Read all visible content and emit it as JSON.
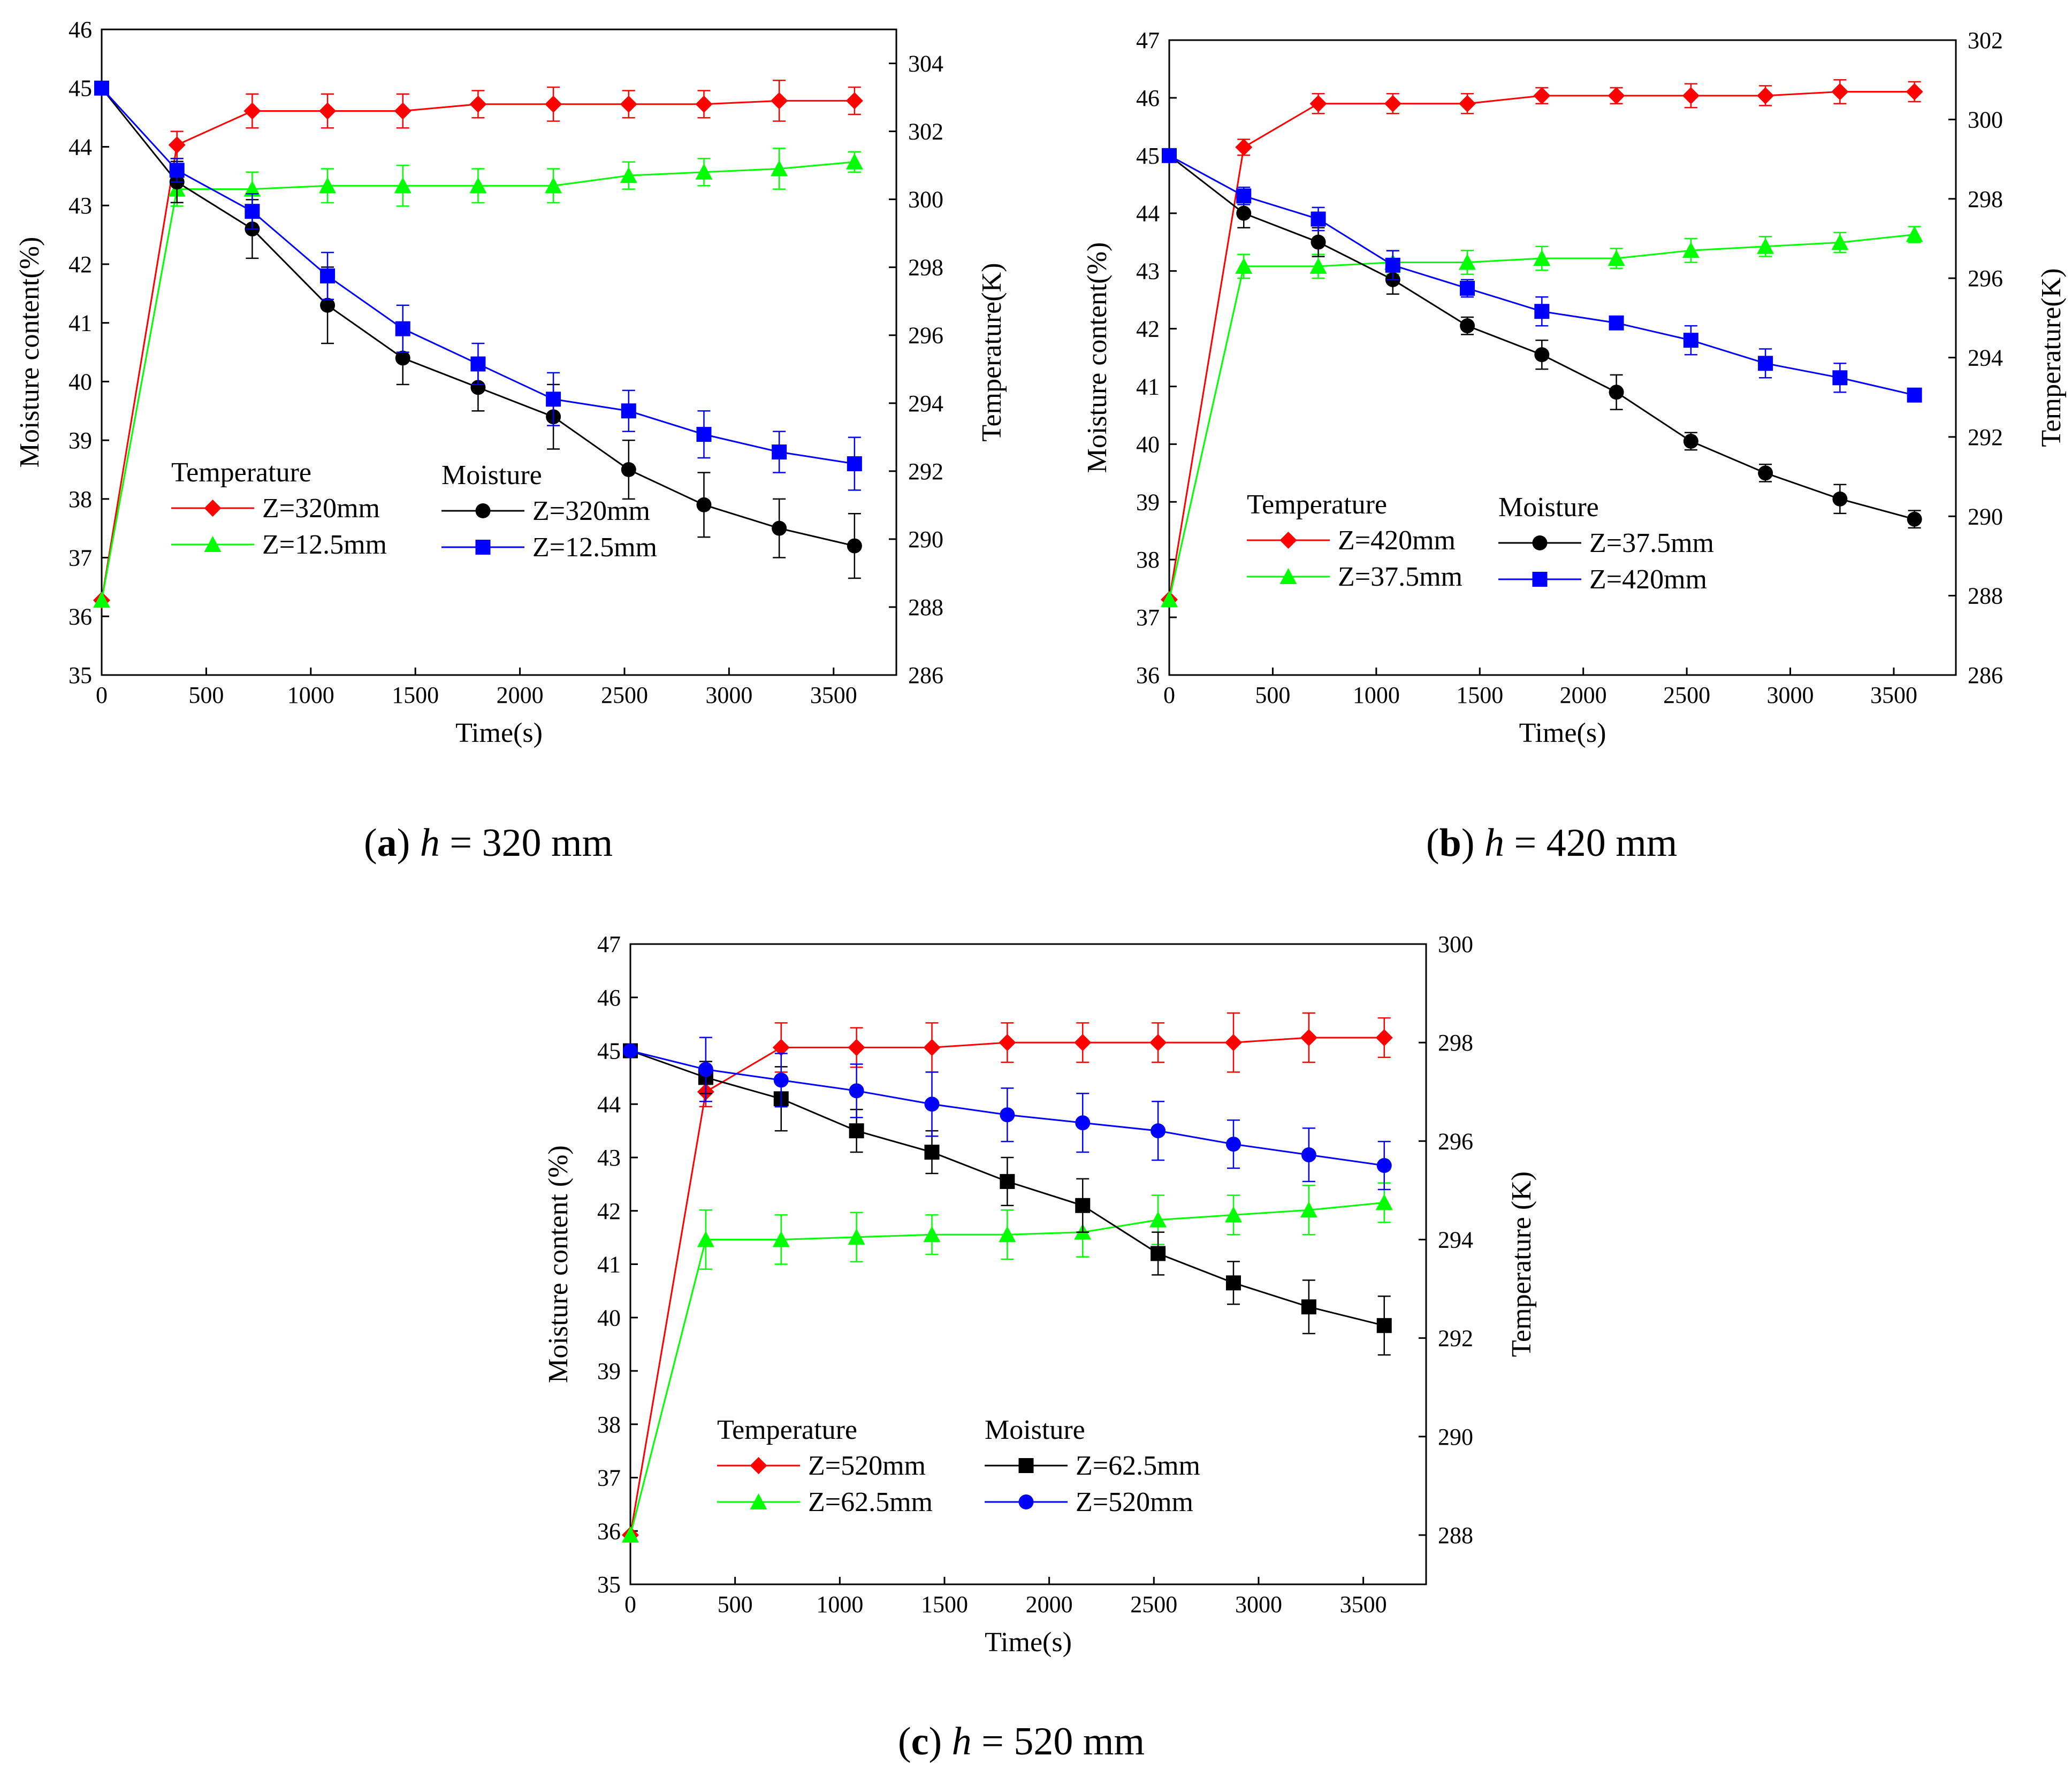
{
  "figure": {
    "panels": [
      {
        "caption": {
          "letter": "a",
          "var": "h",
          "value": "= 320 mm"
        }
      },
      {
        "caption": {
          "letter": "b",
          "var": "h",
          "value": "= 420 mm"
        }
      },
      {
        "caption": {
          "letter": "c",
          "var": "h",
          "value": "= 520 mm"
        }
      }
    ]
  },
  "chart_data": [
    {
      "type": "line",
      "title": "(a) h = 320 mm",
      "xlabel": "Time(s)",
      "ylabel": "Moisture content(%)",
      "y2label": "Temperature(K)",
      "xlim": [
        0,
        3800
      ],
      "ylim": [
        35,
        46
      ],
      "y2lim": [
        286,
        305
      ],
      "xticks": [
        0,
        500,
        1000,
        1500,
        2000,
        2500,
        3000,
        3500
      ],
      "yticks": [
        35,
        36,
        37,
        38,
        39,
        40,
        41,
        42,
        43,
        44,
        45,
        46
      ],
      "y2ticks": [
        286,
        288,
        290,
        292,
        294,
        296,
        298,
        300,
        302,
        304
      ],
      "legend": {
        "temperature_title": "Temperature",
        "moisture_title": "Moisture",
        "placement": "lower-left"
      },
      "x": [
        0,
        360,
        720,
        1080,
        1440,
        1800,
        2160,
        2520,
        2880,
        3240,
        3600
      ],
      "series": [
        {
          "name": "Z=320mm",
          "group": "Temperature",
          "axis": "right",
          "color": "#ff0000",
          "marker": "diamond",
          "values": [
            288.2,
            301.6,
            302.6,
            302.6,
            302.6,
            302.8,
            302.8,
            302.8,
            302.8,
            302.9,
            302.9
          ],
          "errors": [
            0,
            0.4,
            0.5,
            0.5,
            0.5,
            0.4,
            0.5,
            0.4,
            0.4,
            0.6,
            0.4
          ]
        },
        {
          "name": "Z=12.5mm",
          "group": "Temperature",
          "axis": "right",
          "color": "#00ff00",
          "marker": "triangle",
          "values": [
            288.2,
            300.3,
            300.3,
            300.4,
            300.4,
            300.4,
            300.4,
            300.7,
            300.8,
            300.9,
            301.1
          ],
          "errors": [
            0,
            0.5,
            0.5,
            0.5,
            0.6,
            0.5,
            0.5,
            0.4,
            0.4,
            0.6,
            0.3
          ]
        },
        {
          "name": "Z=320mm",
          "group": "Moisture",
          "axis": "left",
          "color": "#000000",
          "marker": "circle",
          "values": [
            45.0,
            43.4,
            42.6,
            41.3,
            40.4,
            39.9,
            39.4,
            38.5,
            37.9,
            37.5,
            37.2
          ],
          "errors": [
            0,
            0.35,
            0.5,
            0.65,
            0.45,
            0.4,
            0.55,
            0.5,
            0.55,
            0.5,
            0.55
          ]
        },
        {
          "name": "Z=12.5mm",
          "group": "Moisture",
          "axis": "left",
          "color": "#0000ff",
          "marker": "square",
          "values": [
            45.0,
            43.6,
            42.9,
            41.8,
            40.9,
            40.3,
            39.7,
            39.5,
            39.1,
            38.8,
            38.6
          ],
          "errors": [
            0,
            0.2,
            0.3,
            0.4,
            0.4,
            0.35,
            0.45,
            0.35,
            0.4,
            0.35,
            0.45
          ]
        }
      ]
    },
    {
      "type": "line",
      "title": "(b) h = 420 mm",
      "xlabel": "Time(s)",
      "ylabel": "Moisture content(%)",
      "y2label": "Temperature(K)",
      "xlim": [
        0,
        3800
      ],
      "ylim": [
        36,
        47
      ],
      "y2lim": [
        286,
        302
      ],
      "xticks": [
        0,
        500,
        1000,
        1500,
        2000,
        2500,
        3000,
        3500
      ],
      "yticks": [
        36,
        37,
        38,
        39,
        40,
        41,
        42,
        43,
        44,
        45,
        46,
        47
      ],
      "y2ticks": [
        286,
        288,
        290,
        292,
        294,
        296,
        298,
        300,
        302
      ],
      "legend": {
        "temperature_title": "Temperature",
        "moisture_title": "Moisture",
        "placement": "lower-left"
      },
      "x": [
        0,
        360,
        720,
        1080,
        1440,
        1800,
        2160,
        2520,
        2880,
        3240,
        3600
      ],
      "series": [
        {
          "name": "Z=420mm",
          "group": "Temperature",
          "axis": "right",
          "color": "#ff0000",
          "marker": "diamond",
          "values": [
            287.9,
            299.3,
            300.4,
            300.4,
            300.4,
            300.6,
            300.6,
            300.6,
            300.6,
            300.7,
            300.7
          ],
          "errors": [
            0,
            0.2,
            0.25,
            0.25,
            0.25,
            0.2,
            0.2,
            0.3,
            0.25,
            0.3,
            0.25
          ]
        },
        {
          "name": "Z=37.5mm",
          "group": "Temperature",
          "axis": "right",
          "color": "#00ff00",
          "marker": "triangle",
          "values": [
            287.9,
            296.3,
            296.3,
            296.4,
            296.4,
            296.5,
            296.5,
            296.7,
            296.8,
            296.9,
            297.1
          ],
          "errors": [
            0,
            0.3,
            0.3,
            0.3,
            0.3,
            0.3,
            0.25,
            0.3,
            0.25,
            0.25,
            0.2
          ]
        },
        {
          "name": "Z=37.5mm",
          "group": "Moisture",
          "axis": "left",
          "color": "#000000",
          "marker": "circle",
          "values": [
            45.0,
            44.0,
            43.5,
            42.85,
            42.05,
            41.55,
            40.9,
            40.05,
            39.5,
            39.05,
            38.7
          ],
          "errors": [
            0,
            0.25,
            0.25,
            0.25,
            0.15,
            0.25,
            0.3,
            0.15,
            0.15,
            0.25,
            0.15
          ]
        },
        {
          "name": "Z=420mm",
          "group": "Moisture",
          "axis": "left",
          "color": "#0000ff",
          "marker": "square",
          "values": [
            45.0,
            44.3,
            43.9,
            43.1,
            42.7,
            42.3,
            42.1,
            41.8,
            41.4,
            41.15,
            40.85
          ],
          "errors": [
            0,
            0.15,
            0.2,
            0.25,
            0.15,
            0.25,
            0.1,
            0.25,
            0.25,
            0.25,
            0.1
          ]
        }
      ]
    },
    {
      "type": "line",
      "title": "(c) h = 520 mm",
      "xlabel": "Time(s)",
      "ylabel": "Moisture content (%)",
      "y2label": "Temperature (K)",
      "xlim": [
        0,
        3800
      ],
      "ylim": [
        35,
        47
      ],
      "y2lim": [
        287,
        300
      ],
      "xticks": [
        0,
        500,
        1000,
        1500,
        2000,
        2500,
        3000,
        3500
      ],
      "yticks": [
        35,
        36,
        37,
        38,
        39,
        40,
        41,
        42,
        43,
        44,
        45,
        46,
        47
      ],
      "y2ticks": [
        288,
        290,
        292,
        294,
        296,
        298,
        300
      ],
      "legend": {
        "temperature_title": "Temperature",
        "moisture_title": "Moisture",
        "placement": "lower-left"
      },
      "x": [
        0,
        360,
        720,
        1080,
        1440,
        1800,
        2160,
        2520,
        2880,
        3240,
        3600
      ],
      "series": [
        {
          "name": "Z=520mm",
          "group": "Temperature",
          "axis": "right",
          "color": "#ff0000",
          "marker": "diamond",
          "values": [
            288.0,
            297.0,
            297.9,
            297.9,
            297.9,
            298.0,
            298.0,
            298.0,
            298.0,
            298.1,
            298.1
          ],
          "errors": [
            0,
            0.3,
            0.5,
            0.4,
            0.5,
            0.4,
            0.4,
            0.4,
            0.6,
            0.5,
            0.4
          ]
        },
        {
          "name": "Z=62.5mm",
          "group": "Temperature",
          "axis": "right",
          "color": "#00ff00",
          "marker": "triangle",
          "values": [
            288.0,
            294.0,
            294.0,
            294.05,
            294.1,
            294.1,
            294.15,
            294.4,
            294.5,
            294.6,
            294.75
          ],
          "errors": [
            0,
            0.6,
            0.5,
            0.5,
            0.4,
            0.5,
            0.5,
            0.5,
            0.4,
            0.5,
            0.4
          ]
        },
        {
          "name": "Z=62.5mm",
          "group": "Moisture",
          "axis": "left",
          "color": "#000000",
          "marker": "square",
          "values": [
            45.0,
            44.5,
            44.1,
            43.5,
            43.1,
            42.55,
            42.1,
            41.2,
            40.65,
            40.2,
            39.85
          ],
          "errors": [
            0,
            0.3,
            0.6,
            0.4,
            0.4,
            0.45,
            0.5,
            0.4,
            0.4,
            0.5,
            0.55
          ]
        },
        {
          "name": "Z=520mm",
          "group": "Moisture",
          "axis": "left",
          "color": "#0000ff",
          "marker": "circle",
          "values": [
            45.0,
            44.65,
            44.45,
            44.25,
            44.0,
            43.8,
            43.65,
            43.5,
            43.25,
            43.05,
            42.85
          ],
          "errors": [
            0,
            0.6,
            0.5,
            0.5,
            0.6,
            0.5,
            0.55,
            0.55,
            0.45,
            0.5,
            0.45
          ]
        }
      ]
    }
  ]
}
